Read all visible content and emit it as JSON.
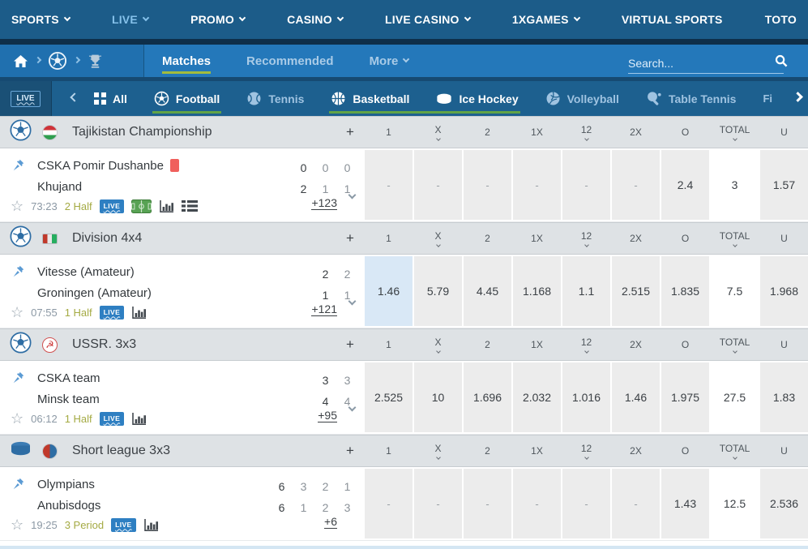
{
  "topnav": {
    "items": [
      {
        "label": "SPORTS",
        "chevron": true,
        "active": false
      },
      {
        "label": "LIVE",
        "chevron": true,
        "active": true
      },
      {
        "label": "PROMO",
        "chevron": true,
        "active": false
      },
      {
        "label": "CASINO",
        "chevron": true,
        "active": false
      },
      {
        "label": "LIVE CASINO",
        "chevron": true,
        "active": false
      },
      {
        "label": "1XGAMES",
        "chevron": true,
        "active": false
      },
      {
        "label": "VIRTUAL SPORTS",
        "chevron": false,
        "active": false
      },
      {
        "label": "TOTO",
        "chevron": false,
        "active": false
      }
    ]
  },
  "breadcrumb": {
    "icons": [
      "home-icon",
      "football-icon",
      "trophy-icon"
    ],
    "tabs": [
      {
        "label": "Matches",
        "active": true,
        "chevron": false
      },
      {
        "label": "Recommended",
        "active": false,
        "chevron": false
      },
      {
        "label": "More",
        "active": false,
        "chevron": true
      }
    ],
    "search_placeholder": "Search..."
  },
  "sports_bar": {
    "live_badge": "LIVE",
    "tabs": [
      {
        "label": "All",
        "icon": "grid",
        "active": false,
        "underline": false,
        "join_next": false
      },
      {
        "label": "Football",
        "icon": "football",
        "active": true,
        "underline": true,
        "join_next": false
      },
      {
        "label": "Tennis",
        "icon": "tennis",
        "active": false,
        "underline": false,
        "join_next": false
      },
      {
        "label": "Basketball",
        "icon": "basketball",
        "active": true,
        "underline": true,
        "join_next": true
      },
      {
        "label": "Ice Hockey",
        "icon": "icehockey",
        "active": true,
        "underline": true,
        "join_next": false
      },
      {
        "label": "Volleyball",
        "icon": "volleyball",
        "active": false,
        "underline": false,
        "join_next": false
      },
      {
        "label": "Table Tennis",
        "icon": "tabletennis",
        "active": false,
        "underline": false,
        "join_next": false
      }
    ],
    "overflow_text": "Fi"
  },
  "odds_columns": {
    "plus": "+",
    "labels": [
      {
        "label": "1",
        "dropdown": false
      },
      {
        "label": "X",
        "dropdown": true
      },
      {
        "label": "2",
        "dropdown": false
      },
      {
        "label": "1X",
        "dropdown": false
      },
      {
        "label": "12",
        "dropdown": true
      },
      {
        "label": "2X",
        "dropdown": false
      },
      {
        "label": "O",
        "dropdown": false
      },
      {
        "label": "TOTAL",
        "dropdown": true
      },
      {
        "label": "U",
        "dropdown": false
      }
    ]
  },
  "leagues": [
    {
      "sport": "football",
      "flag": "tajikistan",
      "name": "Tajikistan Championship",
      "matches": [
        {
          "team1": "CSKA Pomir Dushanbe",
          "team1_redcard": true,
          "team2": "Khujand",
          "scores1": [
            "0",
            "0",
            "0"
          ],
          "scores2": [
            "2",
            "1",
            "1"
          ],
          "time": "73:23",
          "period": "2 Half",
          "icons": [
            "live",
            "pitch",
            "stats",
            "lineup"
          ],
          "more": "+123",
          "expand": true,
          "odds": [
            "-",
            "-",
            "-",
            "-",
            "-",
            "-",
            "2.4",
            "3",
            "1.57"
          ],
          "highlight_cols": []
        }
      ]
    },
    {
      "sport": "football",
      "flag": "tricolor",
      "name": "Division 4x4",
      "matches": [
        {
          "team1": "Vitesse (Amateur)",
          "team1_redcard": false,
          "team2": "Groningen (Amateur)",
          "scores1": [
            "2",
            "2"
          ],
          "scores2": [
            "1",
            "1"
          ],
          "time": "07:55",
          "period": "1 Half",
          "icons": [
            "live",
            "stats"
          ],
          "more": "+121",
          "expand": true,
          "odds": [
            "1.46",
            "5.79",
            "4.45",
            "1.168",
            "1.1",
            "2.515",
            "1.835",
            "7.5",
            "1.968"
          ],
          "highlight_cols": [
            0
          ]
        }
      ]
    },
    {
      "sport": "football",
      "flag": "ussr",
      "name": "USSR. 3x3",
      "matches": [
        {
          "team1": "CSKA team",
          "team1_redcard": false,
          "team2": "Minsk team",
          "scores1": [
            "3",
            "3"
          ],
          "scores2": [
            "4",
            "4"
          ],
          "time": "06:12",
          "period": "1 Half",
          "icons": [
            "live",
            "stats"
          ],
          "more": "+95",
          "expand": true,
          "odds": [
            "2.525",
            "10",
            "1.696",
            "2.032",
            "1.016",
            "1.46",
            "1.975",
            "27.5",
            "1.83"
          ],
          "highlight_cols": []
        }
      ]
    },
    {
      "sport": "icehockey",
      "flag": "crest",
      "name": "Short league 3x3",
      "matches": [
        {
          "team1": "Olympians",
          "team1_redcard": false,
          "team2": "Anubisdogs",
          "scores1": [
            "6",
            "3",
            "2",
            "1"
          ],
          "scores2": [
            "6",
            "1",
            "2",
            "3"
          ],
          "time": "19:25",
          "period": "3 Period",
          "icons": [
            "live",
            "stats"
          ],
          "more": "+6",
          "expand": false,
          "odds": [
            "-",
            "-",
            "-",
            "-",
            "-",
            "-",
            "1.43",
            "12.5",
            "2.536"
          ],
          "highlight_cols": []
        }
      ]
    }
  ],
  "colors": {
    "accent_green_underline": "#61a345",
    "matches_underline": "#a3bc3d",
    "live_badge": "#2e7fc2",
    "red_card": "#f0605d",
    "highlight_cell": "#d9e8f6"
  }
}
